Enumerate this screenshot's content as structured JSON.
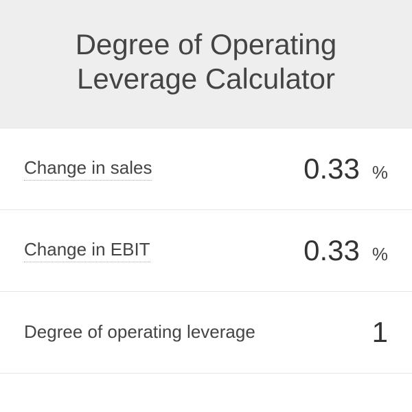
{
  "title": "Degree of Operating Leverage Calculator",
  "rows": [
    {
      "label": "Change in sales",
      "value": "0.33",
      "unit": "%",
      "dotted": true
    },
    {
      "label": "Change in EBIT",
      "value": "0.33",
      "unit": "%",
      "dotted": true
    },
    {
      "label": "Degree of operating leverage",
      "value": "1",
      "unit": "",
      "dotted": false
    }
  ]
}
